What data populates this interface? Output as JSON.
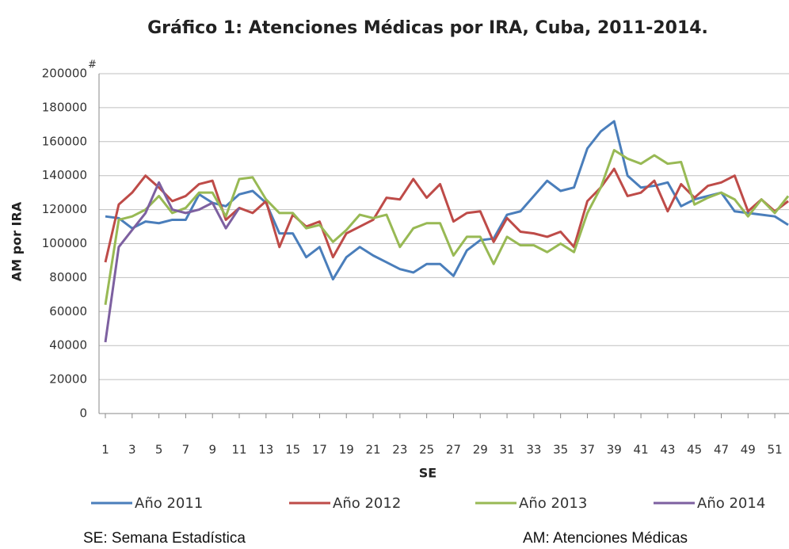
{
  "chart_data": {
    "type": "line",
    "title": "Gráfico  1: Atenciones Médicas por IRA, Cuba, 2011-2014.",
    "x_label": "SE",
    "y_label": "AM por IRA",
    "y_axis_annotation": "#",
    "notes": [
      "SE: Semana Estadística",
      "AM: Atenciones Médicas"
    ],
    "x": [
      1,
      2,
      3,
      4,
      5,
      6,
      7,
      8,
      9,
      10,
      11,
      12,
      13,
      14,
      15,
      16,
      17,
      18,
      19,
      20,
      21,
      22,
      23,
      24,
      25,
      26,
      27,
      28,
      29,
      30,
      31,
      32,
      33,
      34,
      35,
      36,
      37,
      38,
      39,
      40,
      41,
      42,
      43,
      44,
      45,
      46,
      47,
      48,
      49,
      50,
      51,
      52
    ],
    "xlim": [
      1,
      52
    ],
    "xticks": [
      1,
      3,
      5,
      7,
      9,
      11,
      13,
      15,
      17,
      19,
      21,
      23,
      25,
      27,
      29,
      31,
      33,
      35,
      37,
      39,
      41,
      43,
      45,
      47,
      49,
      51
    ],
    "ylim": [
      0,
      200000
    ],
    "yticks": [
      0,
      20000,
      40000,
      60000,
      80000,
      100000,
      120000,
      140000,
      160000,
      180000,
      200000
    ],
    "grid": true,
    "legend": "bottom",
    "series": [
      {
        "name": "Año 2011",
        "color": "#4a7ebb",
        "values": [
          116000,
          115000,
          109000,
          113000,
          112000,
          114000,
          114000,
          129000,
          124000,
          122000,
          129000,
          131000,
          124000,
          106000,
          106000,
          92000,
          98000,
          79000,
          92000,
          98000,
          93000,
          89000,
          85000,
          83000,
          88000,
          88000,
          81000,
          96000,
          102000,
          103000,
          117000,
          119000,
          128000,
          137000,
          131000,
          133000,
          156000,
          166000,
          172000,
          140000,
          133000,
          134000,
          136000,
          122000,
          126000,
          128000,
          130000,
          119000,
          118000,
          117000,
          116000,
          111000
        ]
      },
      {
        "name": "Año 2012",
        "color": "#be4b48",
        "values": [
          89000,
          123000,
          130000,
          140000,
          133000,
          125000,
          128000,
          135000,
          137000,
          114000,
          121000,
          118000,
          125000,
          98000,
          117000,
          110000,
          113000,
          92000,
          106000,
          110000,
          114000,
          127000,
          126000,
          138000,
          127000,
          135000,
          113000,
          118000,
          119000,
          101000,
          115000,
          107000,
          106000,
          104000,
          107000,
          98000,
          125000,
          133000,
          144000,
          128000,
          130000,
          137000,
          119000,
          135000,
          127000,
          134000,
          136000,
          140000,
          119000,
          126000,
          119000,
          125000
        ]
      },
      {
        "name": "Año 2013",
        "color": "#98b954",
        "values": [
          64000,
          114000,
          116000,
          120000,
          128000,
          118000,
          121000,
          130000,
          130000,
          116000,
          138000,
          139000,
          126000,
          118000,
          118000,
          109000,
          111000,
          101000,
          108000,
          117000,
          115000,
          117000,
          98000,
          109000,
          112000,
          112000,
          93000,
          104000,
          104000,
          88000,
          104000,
          99000,
          99000,
          95000,
          100000,
          95000,
          118000,
          133000,
          155000,
          150000,
          147000,
          152000,
          147000,
          148000,
          123000,
          127000,
          130000,
          126000,
          116000,
          126000,
          118000,
          128000
        ]
      },
      {
        "name": "Año 2014",
        "color": "#7d60a0",
        "values": [
          42000,
          98000,
          108000,
          118000,
          136000,
          120000,
          118000,
          120000,
          124000,
          109000,
          121000,
          null,
          null,
          null,
          null,
          null,
          null,
          null,
          null,
          null,
          null,
          null,
          null,
          null,
          null,
          null,
          null,
          null,
          null,
          null,
          null,
          null,
          null,
          null,
          null,
          null,
          null,
          null,
          null,
          null,
          null,
          null,
          null,
          null,
          null,
          null,
          null,
          null,
          null,
          null,
          null,
          null
        ]
      }
    ]
  }
}
